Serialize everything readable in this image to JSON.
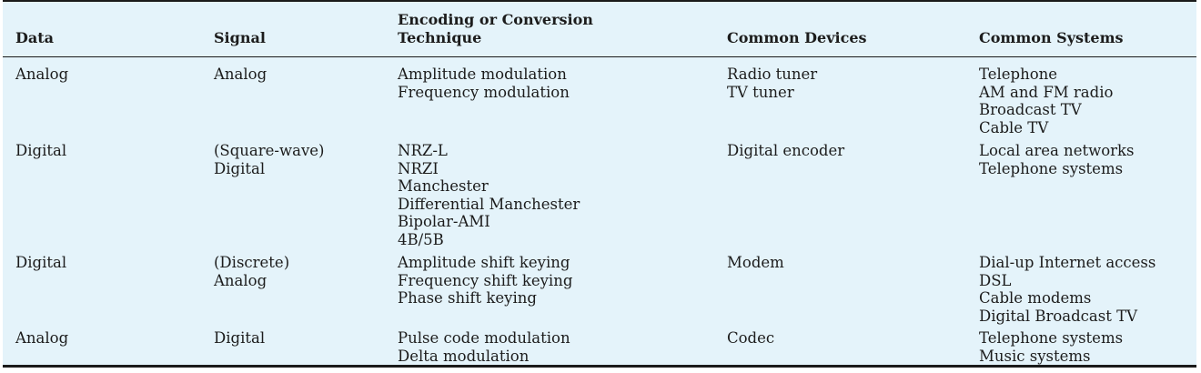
{
  "header": {
    "data": "Data",
    "signal": "Signal",
    "technique": [
      "Encoding or Conversion",
      "Technique"
    ],
    "devices": "Common Devices",
    "systems": "Common Systems"
  },
  "rows": [
    {
      "data": "Analog",
      "signal": [
        "Analog"
      ],
      "technique": [
        "Amplitude modulation",
        "Frequency modulation"
      ],
      "devices": [
        "Radio tuner",
        "TV tuner"
      ],
      "systems": [
        "Telephone",
        "AM and FM radio",
        "Broadcast TV",
        "Cable TV"
      ]
    },
    {
      "data": "Digital",
      "signal": [
        "(Square-wave)",
        "Digital"
      ],
      "technique": [
        "NRZ-L",
        "NRZI",
        "Manchester",
        "Differential Manchester",
        "Bipolar-AMI",
        "4B/5B"
      ],
      "devices": [
        "Digital encoder"
      ],
      "systems": [
        "Local area networks",
        "Telephone systems"
      ]
    },
    {
      "data": "Digital",
      "signal": [
        "(Discrete)",
        "Analog"
      ],
      "technique": [
        "Amplitude shift keying",
        "Frequency shift keying",
        "Phase shift keying"
      ],
      "devices": [
        "Modem"
      ],
      "systems": [
        "Dial-up Internet access",
        "DSL",
        "Cable modems",
        "Digital Broadcast TV"
      ]
    },
    {
      "data": "Analog",
      "signal": [
        "Digital"
      ],
      "technique": [
        "Pulse code modulation",
        "Delta modulation"
      ],
      "devices": [
        "Codec"
      ],
      "systems": [
        "Telephone systems",
        "Music systems"
      ]
    }
  ]
}
